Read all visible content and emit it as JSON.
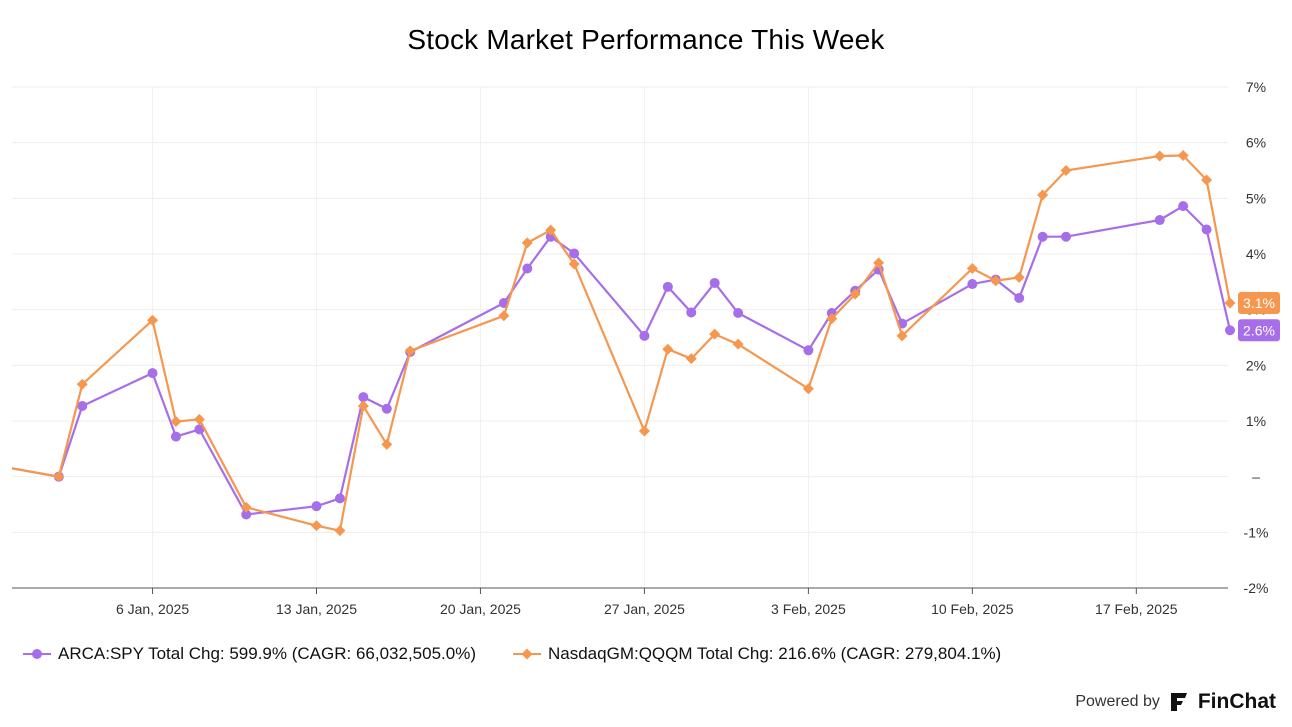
{
  "chart_data": {
    "type": "line",
    "title": "Stock Market Performance This Week",
    "x_tick_labels": [
      "6 Jan, 2025",
      "13 Jan, 2025",
      "20 Jan, 2025",
      "27 Jan, 2025",
      "3 Feb, 2025",
      "10 Feb, 2025",
      "17 Feb, 2025"
    ],
    "y_tick_labels": [
      "7%",
      "6%",
      "5%",
      "4%",
      "3%",
      "2%",
      "1%",
      "–",
      "-1%",
      "-2%"
    ],
    "ylim": [
      -2,
      7
    ],
    "grid": true,
    "legend_position": "bottom-left",
    "series": [
      {
        "name": "ARCA:SPY Total Chg: 599.9% (CAGR: 66,032,505.0%)",
        "color": "#a66ee8",
        "marker": "circle",
        "end_label": "2.6%",
        "points": [
          [
            "2024-12-31",
            0.15
          ],
          [
            "2025-01-02",
            0.0
          ],
          [
            "2025-01-03",
            1.27
          ],
          [
            "2025-01-06",
            1.86
          ],
          [
            "2025-01-07",
            0.72
          ],
          [
            "2025-01-08",
            0.85
          ],
          [
            "2025-01-10",
            -0.68
          ],
          [
            "2025-01-13",
            -0.53
          ],
          [
            "2025-01-14",
            -0.39
          ],
          [
            "2025-01-15",
            1.43
          ],
          [
            "2025-01-16",
            1.22
          ],
          [
            "2025-01-17",
            2.24
          ],
          [
            "2025-01-21",
            3.12
          ],
          [
            "2025-01-22",
            3.74
          ],
          [
            "2025-01-23",
            4.31
          ],
          [
            "2025-01-24",
            4.01
          ],
          [
            "2025-01-27",
            2.53
          ],
          [
            "2025-01-28",
            3.41
          ],
          [
            "2025-01-29",
            2.95
          ],
          [
            "2025-01-30",
            3.48
          ],
          [
            "2025-01-31",
            2.94
          ],
          [
            "2025-02-03",
            2.27
          ],
          [
            "2025-02-04",
            2.94
          ],
          [
            "2025-02-05",
            3.34
          ],
          [
            "2025-02-06",
            3.72
          ],
          [
            "2025-02-07",
            2.75
          ],
          [
            "2025-02-10",
            3.46
          ],
          [
            "2025-02-11",
            3.54
          ],
          [
            "2025-02-12",
            3.21
          ],
          [
            "2025-02-13",
            4.31
          ],
          [
            "2025-02-14",
            4.31
          ],
          [
            "2025-02-18",
            4.61
          ],
          [
            "2025-02-19",
            4.86
          ],
          [
            "2025-02-20",
            4.44
          ],
          [
            "2025-02-21",
            2.63
          ]
        ]
      },
      {
        "name": "NasdaqGM:QQQM Total Chg: 216.6% (CAGR: 279,804.1%)",
        "color": "#f5974e",
        "marker": "diamond",
        "end_label": "3.1%",
        "points": [
          [
            "2024-12-31",
            0.15
          ],
          [
            "2025-01-02",
            0.0
          ],
          [
            "2025-01-03",
            1.66
          ],
          [
            "2025-01-06",
            2.81
          ],
          [
            "2025-01-07",
            0.99
          ],
          [
            "2025-01-08",
            1.03
          ],
          [
            "2025-01-10",
            -0.55
          ],
          [
            "2025-01-13",
            -0.88
          ],
          [
            "2025-01-14",
            -0.97
          ],
          [
            "2025-01-15",
            1.27
          ],
          [
            "2025-01-16",
            0.58
          ],
          [
            "2025-01-17",
            2.26
          ],
          [
            "2025-01-21",
            2.89
          ],
          [
            "2025-01-22",
            4.2
          ],
          [
            "2025-01-23",
            4.43
          ],
          [
            "2025-01-24",
            3.82
          ],
          [
            "2025-01-27",
            0.82
          ],
          [
            "2025-01-28",
            2.29
          ],
          [
            "2025-01-29",
            2.12
          ],
          [
            "2025-01-30",
            2.56
          ],
          [
            "2025-01-31",
            2.38
          ],
          [
            "2025-02-03",
            1.58
          ],
          [
            "2025-02-04",
            2.84
          ],
          [
            "2025-02-05",
            3.28
          ],
          [
            "2025-02-06",
            3.84
          ],
          [
            "2025-02-07",
            2.53
          ],
          [
            "2025-02-10",
            3.74
          ],
          [
            "2025-02-11",
            3.52
          ],
          [
            "2025-02-12",
            3.58
          ],
          [
            "2025-02-13",
            5.06
          ],
          [
            "2025-02-14",
            5.5
          ],
          [
            "2025-02-18",
            5.76
          ],
          [
            "2025-02-19",
            5.77
          ],
          [
            "2025-02-20",
            5.33
          ],
          [
            "2025-02-21",
            3.12
          ]
        ]
      }
    ]
  },
  "footer": {
    "powered_by": "Powered by",
    "brand": "FinChat"
  }
}
